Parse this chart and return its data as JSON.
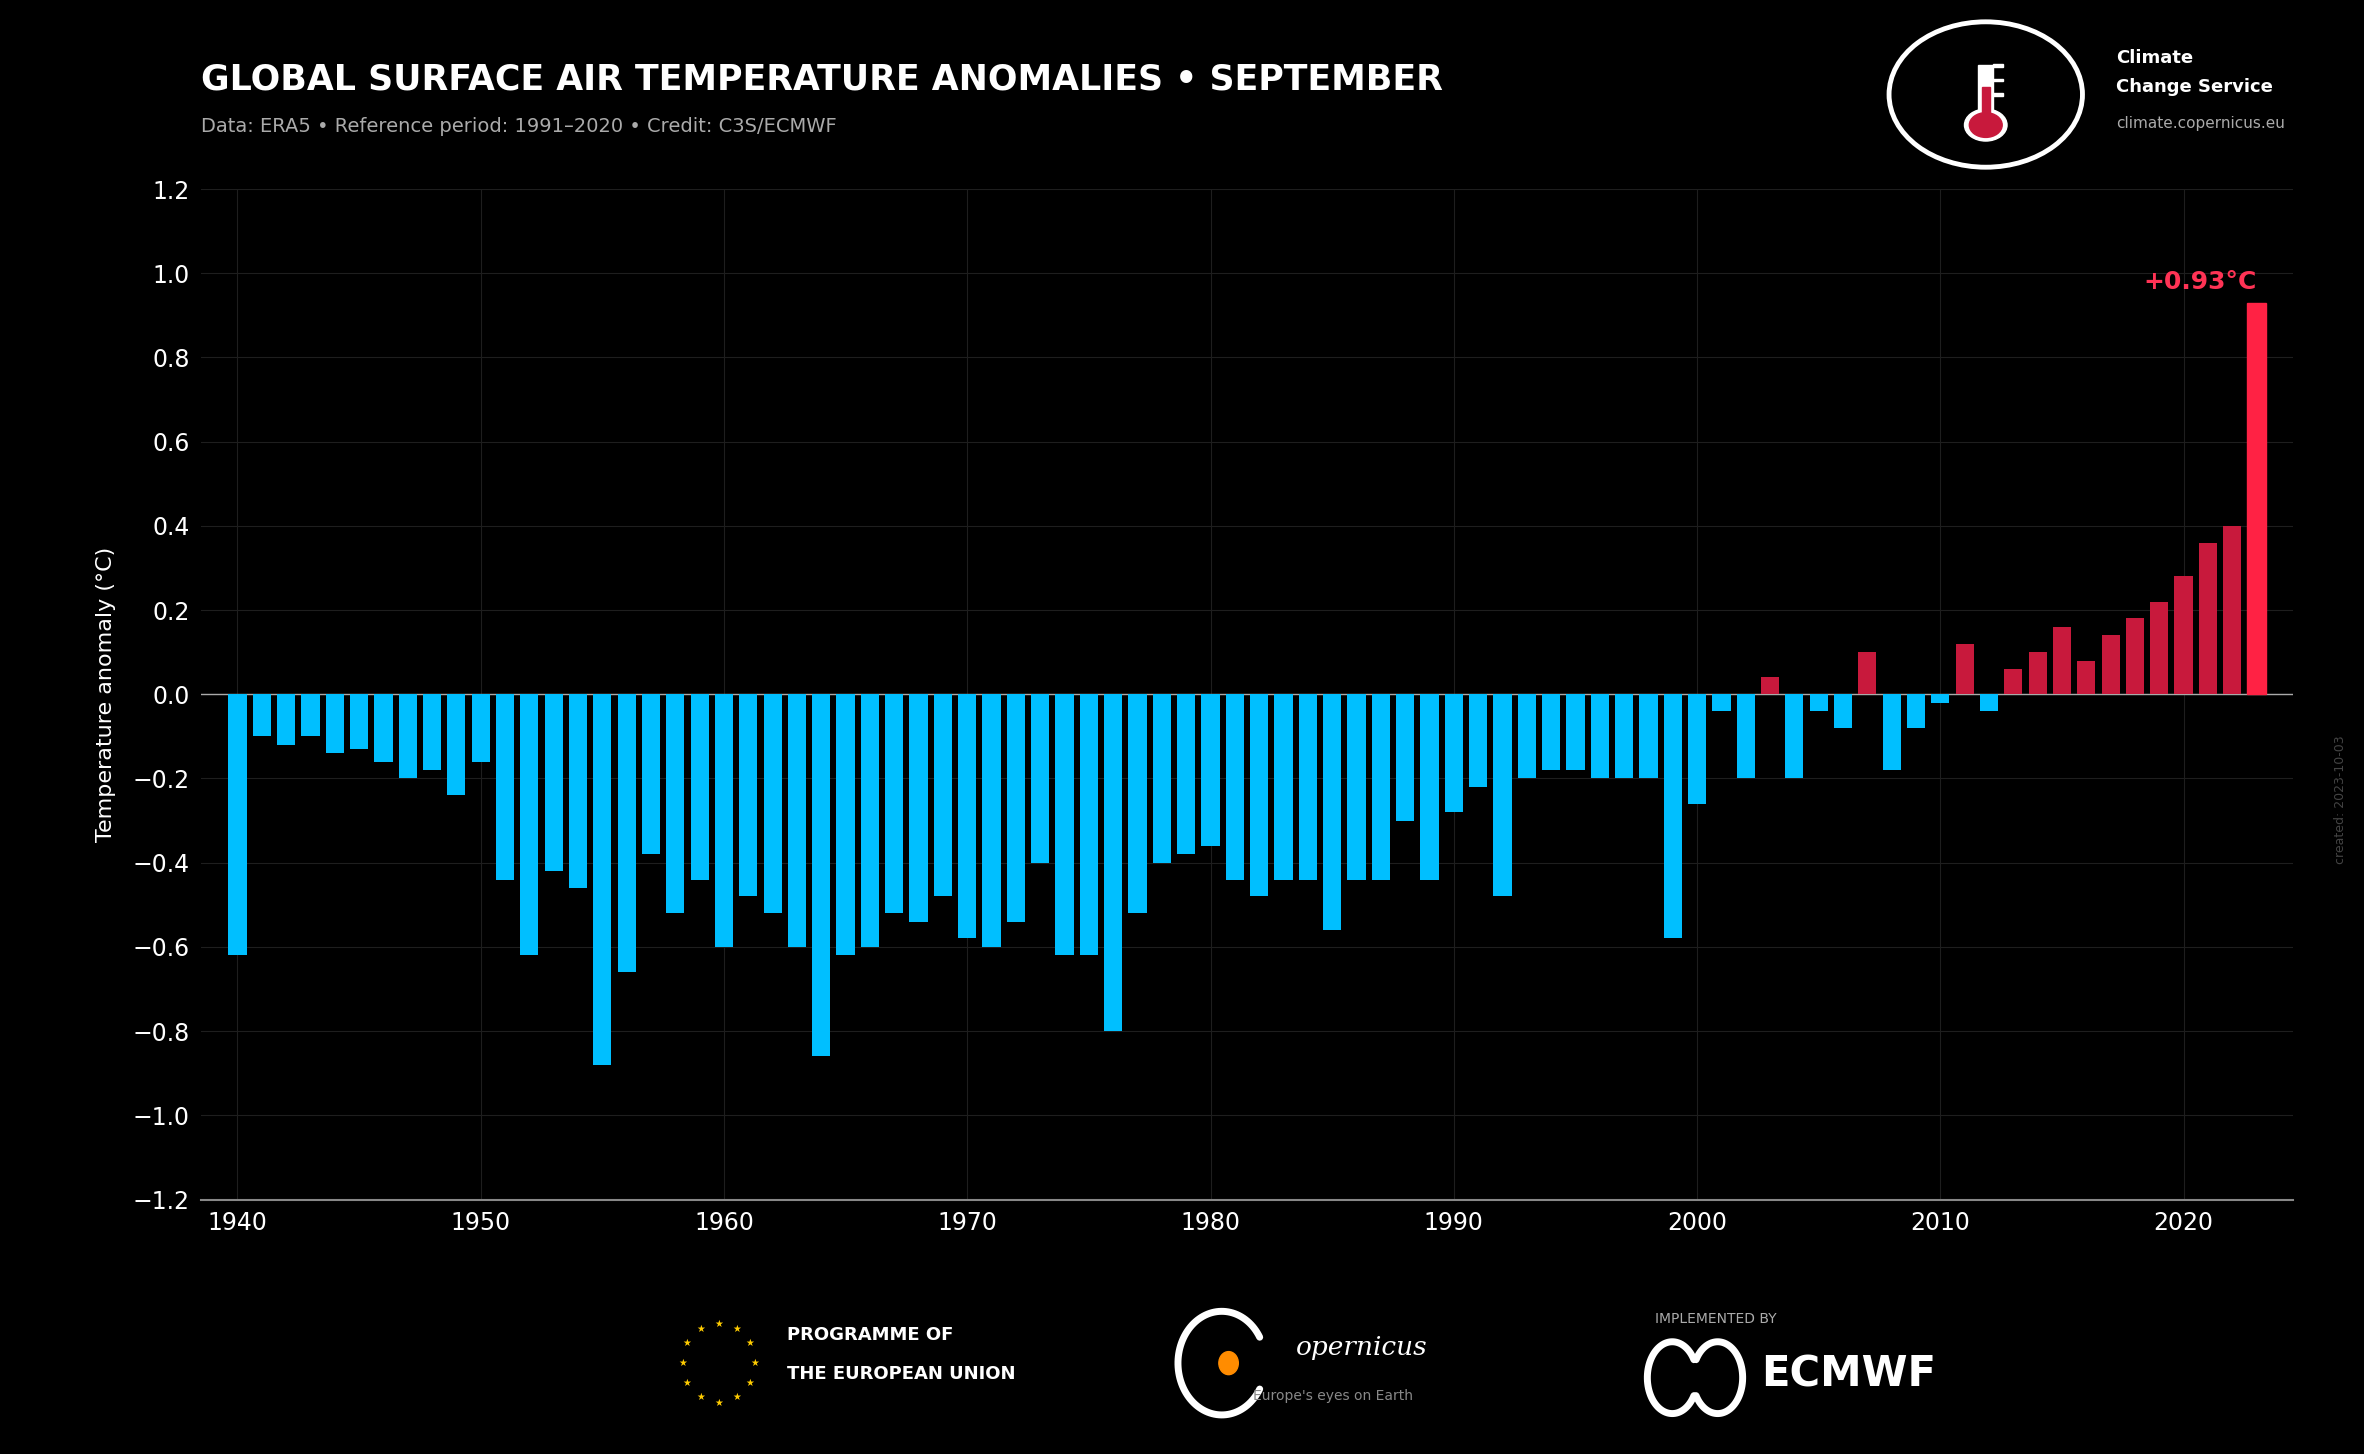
{
  "title": "GLOBAL SURFACE AIR TEMPERATURE ANOMALIES • SEPTEMBER",
  "subtitle": "Data: ERA5 • Reference period: 1991–2020 • Credit: C3S/ECMWF",
  "ylabel": "Temperature anomaly (°C)",
  "background_color": "#000000",
  "bar_color_negative": "#00BFFF",
  "bar_color_positive": "#C8193C",
  "bar_color_highlight": "#FF2244",
  "text_color": "#FFFFFF",
  "subtitle_color": "#AAAAAA",
  "grid_color": "#222222",
  "years": [
    1940,
    1941,
    1942,
    1943,
    1944,
    1945,
    1946,
    1947,
    1948,
    1949,
    1950,
    1951,
    1952,
    1953,
    1954,
    1955,
    1956,
    1957,
    1958,
    1959,
    1960,
    1961,
    1962,
    1963,
    1964,
    1965,
    1966,
    1967,
    1968,
    1969,
    1970,
    1971,
    1972,
    1973,
    1974,
    1975,
    1976,
    1977,
    1978,
    1979,
    1980,
    1981,
    1982,
    1983,
    1984,
    1985,
    1986,
    1987,
    1988,
    1989,
    1990,
    1991,
    1992,
    1993,
    1994,
    1995,
    1996,
    1997,
    1998,
    1999,
    2000,
    2001,
    2002,
    2003,
    2004,
    2005,
    2006,
    2007,
    2008,
    2009,
    2010,
    2011,
    2012,
    2013,
    2014,
    2015,
    2016,
    2017,
    2018,
    2019,
    2020,
    2021,
    2022,
    2023
  ],
  "values": [
    -0.62,
    -0.1,
    -0.12,
    -0.1,
    -0.14,
    -0.13,
    -0.16,
    -0.2,
    -0.18,
    -0.24,
    -0.16,
    -0.44,
    -0.62,
    -0.42,
    -0.46,
    -0.88,
    -0.66,
    -0.38,
    -0.52,
    -0.44,
    -0.6,
    -0.48,
    -0.52,
    -0.6,
    -0.86,
    -0.62,
    -0.6,
    -0.52,
    -0.54,
    -0.48,
    -0.58,
    -0.6,
    -0.54,
    -0.4,
    -0.62,
    -0.62,
    -0.8,
    -0.52,
    -0.4,
    -0.38,
    -0.36,
    -0.44,
    -0.48,
    -0.44,
    -0.44,
    -0.56,
    -0.44,
    -0.44,
    -0.3,
    -0.44,
    -0.28,
    -0.22,
    -0.48,
    -0.2,
    -0.18,
    -0.18,
    -0.2,
    -0.2,
    -0.2,
    -0.58,
    -0.26,
    -0.04,
    -0.2,
    0.04,
    -0.2,
    -0.04,
    -0.08,
    0.1,
    -0.18,
    -0.08,
    -0.02,
    0.12,
    -0.04,
    0.06,
    0.1,
    0.16,
    0.08,
    0.14,
    0.18,
    0.22,
    0.28,
    0.36,
    0.4,
    0.93
  ],
  "ylim": [
    -1.2,
    1.2
  ],
  "yticks": [
    -1.2,
    -1.0,
    -0.8,
    -0.6,
    -0.4,
    -0.2,
    0.0,
    0.2,
    0.4,
    0.6,
    0.8,
    1.0,
    1.2
  ],
  "xticks": [
    1940,
    1950,
    1960,
    1970,
    1980,
    1990,
    2000,
    2010,
    2020
  ],
  "highlight_year": 2023,
  "highlight_value": 0.93,
  "highlight_label": "+0.93°C",
  "watermark": "created: 2023-10-03"
}
